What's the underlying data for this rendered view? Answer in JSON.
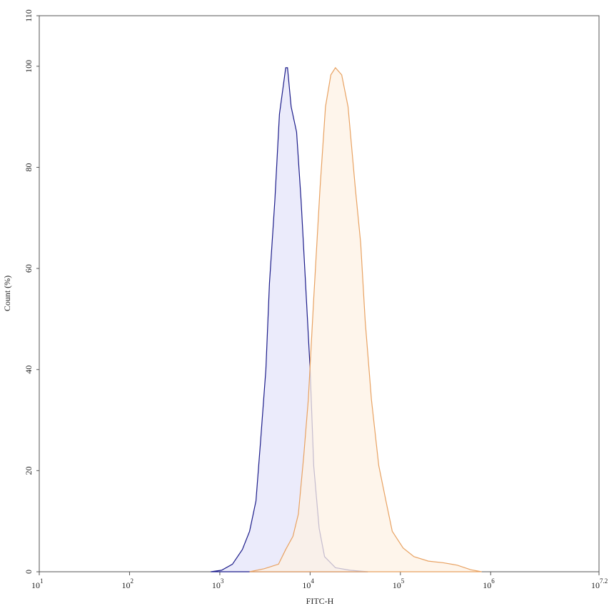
{
  "chart_data": {
    "type": "area",
    "x_label": "FITC-H",
    "y_label": "Count  (%)",
    "xscale": "log",
    "xlim": [
      10,
      15848932
    ],
    "ylim": [
      0,
      110
    ],
    "xticks": [
      {
        "value": 10,
        "label": "10",
        "exponent": "1"
      },
      {
        "value": 100,
        "label": "10",
        "exponent": "2"
      },
      {
        "value": 1000,
        "label": "10",
        "exponent": "3"
      },
      {
        "value": 10000,
        "label": "10",
        "exponent": "4"
      },
      {
        "value": 100000,
        "label": "10",
        "exponent": "5"
      },
      {
        "value": 1000000,
        "label": "10",
        "exponent": "6"
      },
      {
        "value": 15848932,
        "label": "10",
        "exponent": "7.2"
      }
    ],
    "yticks": [
      0,
      20,
      40,
      60,
      80,
      100,
      110
    ],
    "series": [
      {
        "color": "#1c1c8a",
        "fill": "#e4e4fa",
        "x": [
          794,
          1047,
          1380,
          1778,
          2138,
          2512,
          2818,
          3236,
          3548,
          4074,
          4571,
          5370,
          5623,
          6166,
          7079,
          7943,
          8913,
          10000,
          10965,
          12589,
          14454,
          19055,
          27542,
          43652
        ],
        "values": [
          0,
          0.3,
          1.5,
          4.4,
          8,
          14,
          25.5,
          40,
          57,
          73.5,
          90.5,
          99.7,
          99.7,
          92,
          87,
          73.5,
          57,
          40,
          21,
          8.6,
          3,
          0.8,
          0.3,
          0
        ]
      },
      {
        "color": "#e8a262",
        "fill": "#fdf1e4",
        "x": [
          2138,
          3090,
          4467,
          5370,
          6457,
          7413,
          8511,
          9550,
          10965,
          12882,
          14791,
          16982,
          19055,
          22387,
          26303,
          31623,
          36308,
          40738,
          47863,
          57544,
          69183,
          81283,
          107152,
          141254,
          204174,
          295121,
          426580,
          602560,
          794328
        ],
        "values": [
          0,
          0.6,
          1.5,
          4.4,
          7,
          11.4,
          23,
          34,
          54,
          76,
          92,
          98.3,
          99.7,
          98.3,
          92,
          76,
          65,
          49.6,
          34,
          21,
          14,
          8,
          4.7,
          3,
          2.1,
          1.8,
          1.3,
          0.4,
          0
        ]
      }
    ]
  }
}
